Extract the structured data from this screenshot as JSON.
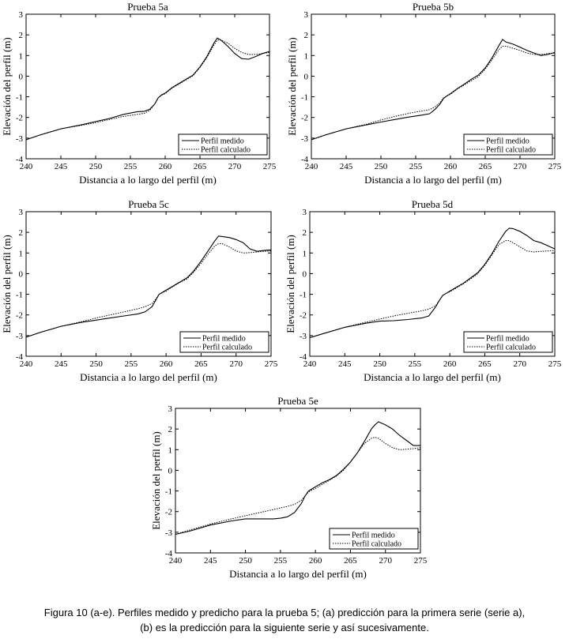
{
  "chart_data": [
    {
      "type": "line",
      "title": "Prueba 5a",
      "xlabel": "Distancia a lo largo del perfil (m)",
      "ylabel": "Elevación del perfil (m)",
      "xlim": [
        240,
        275
      ],
      "ylim": [
        -4,
        3
      ],
      "xticks": [
        "240",
        "245",
        "250",
        "255",
        "260",
        "265",
        "270",
        "275"
      ],
      "yticks": [
        "-4",
        "-3",
        "-2",
        "-1",
        "0",
        "1",
        "2",
        "3"
      ],
      "legend": "bottom-right",
      "x": [
        240,
        242,
        245,
        248,
        250,
        252,
        254,
        256,
        257,
        257.8,
        258.5,
        259,
        259.5,
        260,
        261,
        262,
        263,
        264,
        265,
        266,
        267,
        267.5,
        268,
        269,
        270,
        271,
        272,
        273,
        274,
        275
      ],
      "series": [
        {
          "name": "Perfil medido",
          "style": "solid",
          "values": [
            -3.08,
            -2.85,
            -2.55,
            -2.35,
            -2.2,
            -2.05,
            -1.85,
            -1.72,
            -1.7,
            -1.6,
            -1.35,
            -1.05,
            -0.9,
            -0.82,
            -0.55,
            -0.35,
            -0.15,
            0.05,
            0.45,
            0.95,
            1.6,
            1.85,
            1.75,
            1.45,
            1.1,
            0.85,
            0.82,
            0.95,
            1.1,
            1.2
          ]
        },
        {
          "name": "Perfil calculado",
          "style": "dotted",
          "values": [
            -3.08,
            -2.85,
            -2.55,
            -2.38,
            -2.25,
            -2.1,
            -1.95,
            -1.85,
            -1.8,
            -1.65,
            -1.35,
            -1.05,
            -0.92,
            -0.85,
            -0.58,
            -0.38,
            -0.18,
            0.02,
            0.42,
            0.9,
            1.5,
            1.75,
            1.75,
            1.6,
            1.35,
            1.15,
            1.05,
            1.05,
            1.1,
            1.15
          ]
        }
      ]
    },
    {
      "type": "line",
      "title": "Prueba 5b",
      "xlabel": "Distancia a lo largo del perfil (m)",
      "ylabel": "Elevación del perfil (m)",
      "xlim": [
        240,
        275
      ],
      "ylim": [
        -4,
        3
      ],
      "xticks": [
        "240",
        "245",
        "250",
        "255",
        "260",
        "265",
        "270",
        "275"
      ],
      "yticks": [
        "-4",
        "-3",
        "-2",
        "-1",
        "0",
        "1",
        "2",
        "3"
      ],
      "legend": "bottom-right",
      "x": [
        240,
        242,
        245,
        248,
        250,
        252,
        254,
        256,
        257,
        257.8,
        258.5,
        259,
        259.5,
        260,
        261,
        262,
        263,
        264,
        265,
        266,
        267,
        267.5,
        268,
        269,
        270,
        271,
        272,
        273,
        274,
        275
      ],
      "series": [
        {
          "name": "Perfil medido",
          "style": "solid",
          "values": [
            -3.08,
            -2.85,
            -2.55,
            -2.35,
            -2.22,
            -2.1,
            -1.98,
            -1.88,
            -1.82,
            -1.6,
            -1.35,
            -1.08,
            -0.95,
            -0.85,
            -0.6,
            -0.38,
            -0.15,
            0.05,
            0.4,
            0.9,
            1.5,
            1.78,
            1.65,
            1.55,
            1.4,
            1.25,
            1.12,
            1.0,
            1.05,
            1.15
          ]
        },
        {
          "name": "Perfil calculado",
          "style": "dotted",
          "values": [
            -3.08,
            -2.85,
            -2.55,
            -2.32,
            -2.12,
            -1.95,
            -1.8,
            -1.68,
            -1.62,
            -1.48,
            -1.28,
            -1.05,
            -0.95,
            -0.88,
            -0.62,
            -0.42,
            -0.22,
            -0.02,
            0.35,
            0.8,
            1.3,
            1.45,
            1.45,
            1.35,
            1.25,
            1.12,
            1.05,
            1.05,
            1.1,
            1.12
          ]
        }
      ]
    },
    {
      "type": "line",
      "title": "Prueba 5c",
      "xlabel": "Distancia a lo largo del perfil (m)",
      "ylabel": "Elevación del perfil (m)",
      "xlim": [
        240,
        275
      ],
      "ylim": [
        -4,
        3
      ],
      "xticks": [
        "240",
        "245",
        "250",
        "255",
        "260",
        "265",
        "270",
        "275"
      ],
      "yticks": [
        "-4",
        "-3",
        "-2",
        "-1",
        "0",
        "1",
        "2",
        "3"
      ],
      "legend": "bottom-right",
      "x": [
        240,
        242,
        245,
        248,
        250,
        252,
        254,
        256,
        257,
        258,
        258.5,
        259,
        259.5,
        260,
        261,
        262,
        263,
        264,
        265,
        266,
        267,
        267.5,
        268,
        269,
        270,
        271,
        272,
        273,
        274,
        275
      ],
      "series": [
        {
          "name": "Perfil medido",
          "style": "solid",
          "values": [
            -3.08,
            -2.85,
            -2.55,
            -2.35,
            -2.25,
            -2.15,
            -2.05,
            -1.95,
            -1.85,
            -1.6,
            -1.3,
            -1.0,
            -0.9,
            -0.8,
            -0.6,
            -0.4,
            -0.2,
            0.15,
            0.6,
            1.1,
            1.6,
            1.82,
            1.8,
            1.75,
            1.65,
            1.5,
            1.2,
            1.08,
            1.12,
            1.15
          ]
        },
        {
          "name": "Perfil calculado",
          "style": "dotted",
          "values": [
            -3.08,
            -2.85,
            -2.55,
            -2.32,
            -2.15,
            -2.0,
            -1.85,
            -1.7,
            -1.6,
            -1.45,
            -1.25,
            -1.0,
            -0.92,
            -0.85,
            -0.62,
            -0.42,
            -0.25,
            0.1,
            0.5,
            0.95,
            1.35,
            1.45,
            1.45,
            1.3,
            1.1,
            1.0,
            1.02,
            1.05,
            1.08,
            1.1
          ]
        }
      ]
    },
    {
      "type": "line",
      "title": "Prueba 5d",
      "xlabel": "Distancia a lo largo del perfil (m)",
      "ylabel": "Elevación del perfil (m)",
      "xlim": [
        240,
        275
      ],
      "ylim": [
        -4,
        3
      ],
      "xticks": [
        "240",
        "245",
        "250",
        "255",
        "260",
        "265",
        "270",
        "275"
      ],
      "yticks": [
        "-4",
        "-3",
        "-2",
        "-1",
        "0",
        "1",
        "2",
        "3"
      ],
      "legend": "bottom-right",
      "x": [
        240,
        242,
        245,
        248,
        250,
        252,
        254,
        256,
        257,
        258,
        258.5,
        259,
        259.5,
        260,
        261,
        262,
        263,
        264,
        265,
        266,
        267,
        268,
        268.5,
        269,
        270,
        271,
        272,
        273,
        274,
        275
      ],
      "series": [
        {
          "name": "Perfil medido",
          "style": "solid",
          "values": [
            -3.1,
            -2.9,
            -2.6,
            -2.4,
            -2.3,
            -2.28,
            -2.22,
            -2.15,
            -2.05,
            -1.6,
            -1.3,
            -1.05,
            -0.95,
            -0.85,
            -0.65,
            -0.45,
            -0.2,
            0.05,
            0.45,
            0.95,
            1.55,
            2.05,
            2.2,
            2.18,
            2.05,
            1.85,
            1.6,
            1.5,
            1.35,
            1.2
          ]
        },
        {
          "name": "Perfil calculado",
          "style": "dotted",
          "values": [
            -3.1,
            -2.9,
            -2.6,
            -2.35,
            -2.2,
            -2.05,
            -1.92,
            -1.8,
            -1.72,
            -1.55,
            -1.3,
            -1.05,
            -0.95,
            -0.88,
            -0.68,
            -0.48,
            -0.25,
            0.0,
            0.4,
            0.9,
            1.4,
            1.6,
            1.6,
            1.5,
            1.3,
            1.1,
            1.05,
            1.08,
            1.1,
            1.12
          ]
        }
      ]
    },
    {
      "type": "line",
      "title": "Prueba 5e",
      "xlabel": "Distancia a lo largo del perfil (m)",
      "ylabel": "Elevación del perfil (m)",
      "xlim": [
        240,
        275
      ],
      "ylim": [
        -4,
        3
      ],
      "xticks": [
        "240",
        "245",
        "250",
        "255",
        "260",
        "265",
        "270",
        "275"
      ],
      "yticks": [
        "-4",
        "-3",
        "-2",
        "-1",
        "0",
        "1",
        "2",
        "3"
      ],
      "legend": "bottom-right",
      "x": [
        240,
        242,
        245,
        248,
        250,
        252,
        254,
        255,
        256,
        257,
        258,
        258.5,
        259,
        259.5,
        260,
        261,
        262,
        263,
        264,
        265,
        266,
        267,
        268,
        268.5,
        269,
        270,
        271,
        272,
        273,
        274,
        275
      ],
      "series": [
        {
          "name": "Perfil medido",
          "style": "solid",
          "values": [
            -3.1,
            -2.95,
            -2.65,
            -2.45,
            -2.35,
            -2.35,
            -2.35,
            -2.32,
            -2.25,
            -2.05,
            -1.6,
            -1.25,
            -1.0,
            -0.9,
            -0.8,
            -0.6,
            -0.45,
            -0.25,
            0.05,
            0.4,
            0.85,
            1.4,
            2.0,
            2.2,
            2.35,
            2.2,
            2.0,
            1.7,
            1.45,
            1.2,
            1.2
          ]
        },
        {
          "name": "Perfil calculado",
          "style": "dotted",
          "values": [
            -3.1,
            -2.9,
            -2.6,
            -2.35,
            -2.2,
            -2.05,
            -1.9,
            -1.82,
            -1.75,
            -1.65,
            -1.45,
            -1.25,
            -1.05,
            -0.95,
            -0.88,
            -0.68,
            -0.48,
            -0.28,
            0.0,
            0.4,
            0.85,
            1.3,
            1.55,
            1.6,
            1.55,
            1.3,
            1.1,
            1.0,
            1.02,
            1.05,
            1.1
          ]
        }
      ]
    }
  ],
  "caption": {
    "line1": "Figura 10 (a-e). Perfiles medido y predicho para la prueba 5; (a) predicción para la primera serie (serie a),",
    "line2": "(b) es la predicción para la siguiente serie y así sucesivamente."
  }
}
